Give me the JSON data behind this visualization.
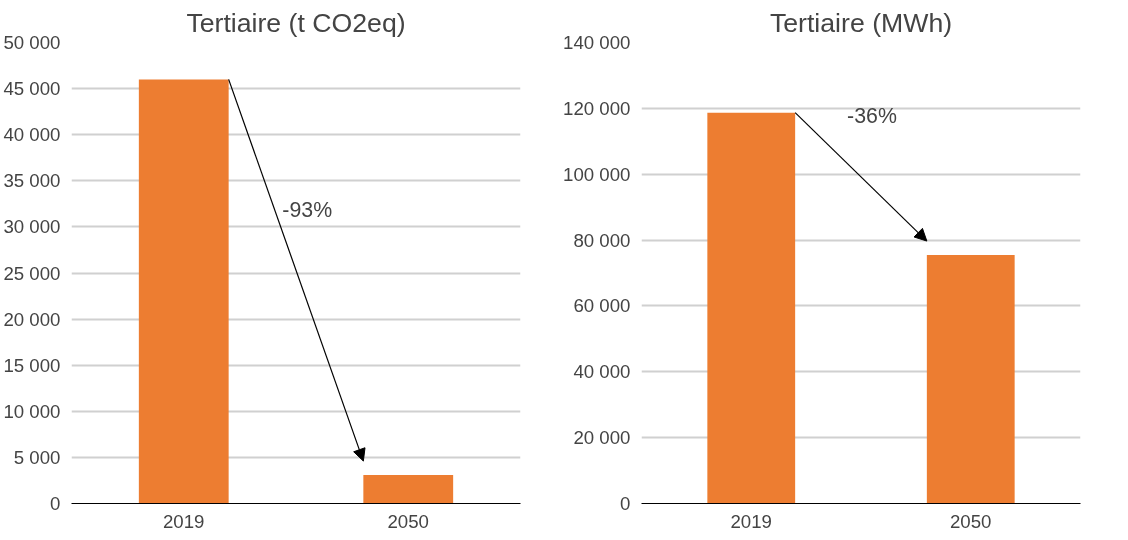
{
  "chart_data": [
    {
      "type": "bar",
      "title": "Tertiaire (t CO2eq)",
      "categories": [
        "2019",
        "2050"
      ],
      "values": [
        46000,
        3100
      ],
      "color": "#ed7d31",
      "ylim": [
        0,
        50000
      ],
      "yticks": [
        0,
        {
          "value": 5000,
          "label": "5 000"
        },
        {
          "value": 10000,
          "label": "10 000"
        },
        {
          "value": 15000,
          "label": "15 000"
        },
        {
          "value": 20000,
          "label": "20 000"
        },
        {
          "value": 25000,
          "label": "25 000"
        },
        {
          "value": 30000,
          "label": "30 000"
        },
        {
          "value": 35000,
          "label": "35 000"
        },
        {
          "value": 40000,
          "label": "40 000"
        },
        {
          "value": 45000,
          "label": "45 000"
        },
        {
          "value": 50000,
          "label": "50 000"
        }
      ],
      "grid": "y",
      "annotations": [
        "-93%"
      ]
    },
    {
      "type": "bar",
      "title": "Tertiaire (MWh)",
      "categories": [
        "2019",
        "2050"
      ],
      "values": [
        118700,
        75500
      ],
      "color": "#ed7d31",
      "ylim": [
        0,
        140000
      ],
      "yticks": [
        0,
        {
          "value": 20000,
          "label": "20 000"
        },
        {
          "value": 40000,
          "label": "40 000"
        },
        {
          "value": 60000,
          "label": "60 000"
        },
        {
          "value": 80000,
          "label": "80 000"
        },
        {
          "value": 100000,
          "label": "100 000"
        },
        {
          "value": 120000,
          "label": "120 000"
        },
        {
          "value": 140000,
          "label": "140 000"
        }
      ],
      "grid": "y",
      "annotations": [
        "-36%"
      ]
    }
  ]
}
